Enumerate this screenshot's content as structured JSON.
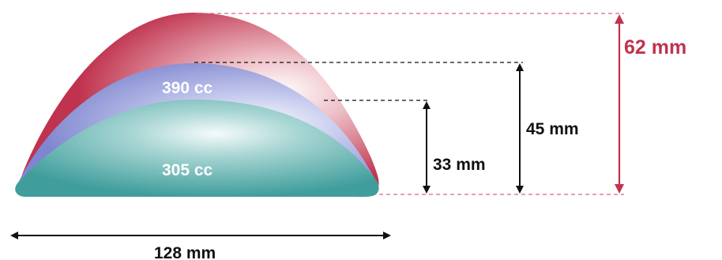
{
  "colors": {
    "red": "#c0334e",
    "blue": "#7f86cf",
    "teal": "#3f9e9c",
    "dim_black": "#111111",
    "dash_red": "#d06a7c"
  },
  "labels": {
    "volume_large": "390 cc",
    "volume_small": "305 cc",
    "height_red": "62 mm",
    "height_blue": "45 mm",
    "height_teal": "33 mm",
    "width": "128 mm"
  }
}
